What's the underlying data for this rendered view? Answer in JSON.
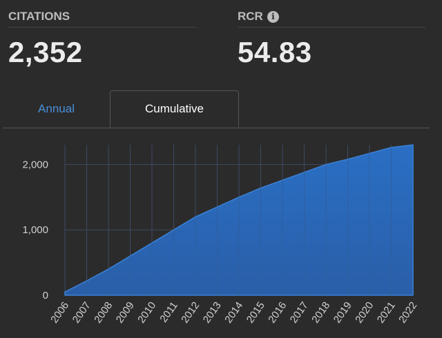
{
  "metrics": {
    "citations": {
      "label": "CITATIONS",
      "value": "2,352"
    },
    "rcr": {
      "label": "RCR",
      "info_icon": "info-icon",
      "info_glyph": "i",
      "value": "54.83"
    }
  },
  "tabs": [
    {
      "label": "Annual",
      "active": false
    },
    {
      "label": "Cumulative",
      "active": true
    }
  ],
  "colors": {
    "accent": "#4a90d9",
    "area_fill": "#2a6fc4",
    "background": "#2b2b2b",
    "grid": "#3d4a66"
  },
  "chart_data": {
    "type": "area",
    "title": "",
    "xlabel": "",
    "ylabel": "",
    "x": [
      "2006",
      "2007",
      "2008",
      "2009",
      "2010",
      "2011",
      "2012",
      "2013",
      "2014",
      "2015",
      "2016",
      "2017",
      "2018",
      "2019",
      "2020",
      "2021",
      "2022"
    ],
    "y_ticks": [
      0,
      1000,
      2000
    ],
    "y_tick_labels": [
      "0",
      "1,000",
      "2,000"
    ],
    "ylim": [
      0,
      2300
    ],
    "grid": true,
    "series": [
      {
        "values": [
          50,
          220,
          400,
          600,
          800,
          1000,
          1200,
          1350,
          1500,
          1640,
          1760,
          1880,
          2000,
          2080,
          2170,
          2260,
          2300
        ]
      }
    ]
  }
}
